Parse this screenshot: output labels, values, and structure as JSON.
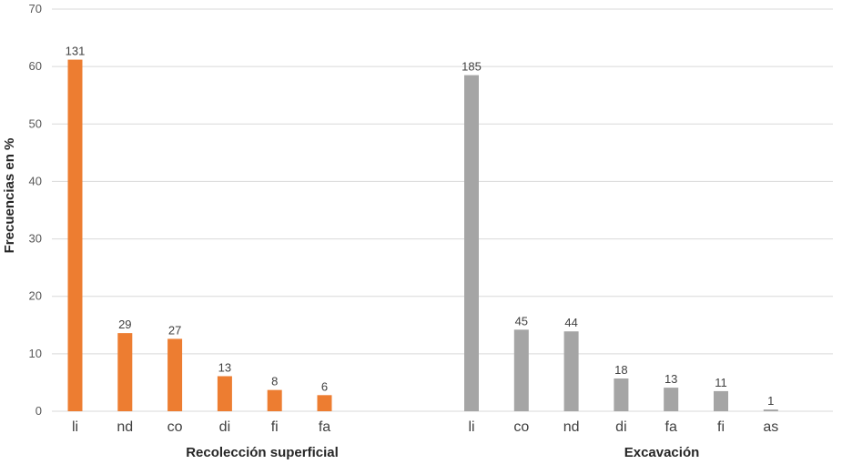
{
  "chart_data": {
    "type": "bar",
    "ylabel": "Frecuencias en %",
    "ylim": [
      0,
      70
    ],
    "yticks": [
      0,
      10,
      20,
      30,
      40,
      50,
      60,
      70
    ],
    "grid": true,
    "groups": [
      {
        "name": "Recolección superficial",
        "color": "#ed7d31",
        "categories": [
          "li",
          "nd",
          "co",
          "di",
          "fi",
          "fa"
        ],
        "values": [
          61.2,
          13.6,
          12.6,
          6.1,
          3.7,
          2.8
        ],
        "labels": [
          "131",
          "29",
          "27",
          "13",
          "8",
          "6"
        ]
      },
      {
        "name": "Excavación",
        "color": "#a5a5a5",
        "categories": [
          "li",
          "co",
          "nd",
          "di",
          "fa",
          "fi",
          "as"
        ],
        "values": [
          58.5,
          14.2,
          13.9,
          5.7,
          4.1,
          3.5,
          0.3
        ],
        "labels": [
          "185",
          "45",
          "44",
          "18",
          "13",
          "11",
          "1"
        ]
      }
    ]
  }
}
